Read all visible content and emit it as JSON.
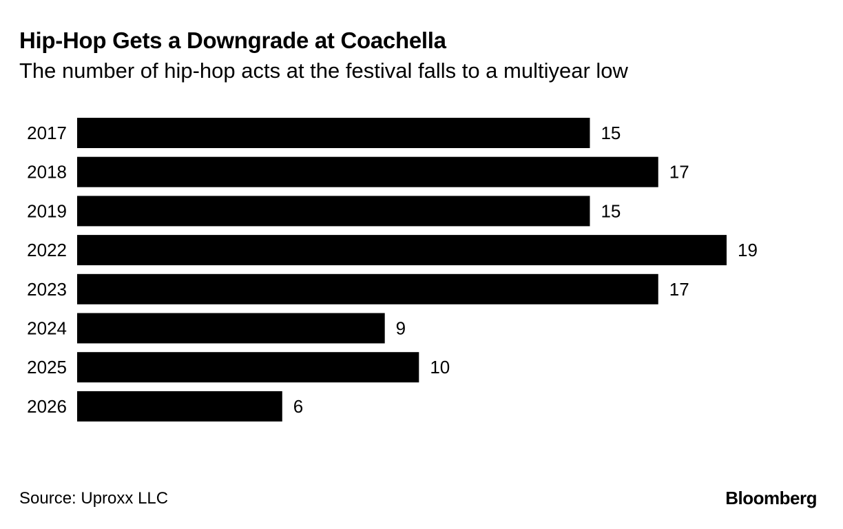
{
  "chart_data": {
    "type": "bar",
    "orientation": "horizontal",
    "title": "Hip-Hop Gets a Downgrade at Coachella",
    "subtitle": "The number of hip-hop acts at the festival falls to a multiyear low",
    "categories": [
      "2017",
      "2018",
      "2019",
      "2022",
      "2023",
      "2024",
      "2025",
      "2026"
    ],
    "values": [
      15,
      17,
      15,
      19,
      17,
      9,
      10,
      6
    ],
    "value_labels": [
      "15",
      "17",
      "15",
      "19",
      "17",
      "9",
      "10",
      "6"
    ],
    "xlim": [
      0,
      19
    ],
    "bar_color": "#000000",
    "grid": false
  },
  "footer": {
    "source": "Source: Uproxx LLC",
    "brand": "Bloomberg"
  }
}
